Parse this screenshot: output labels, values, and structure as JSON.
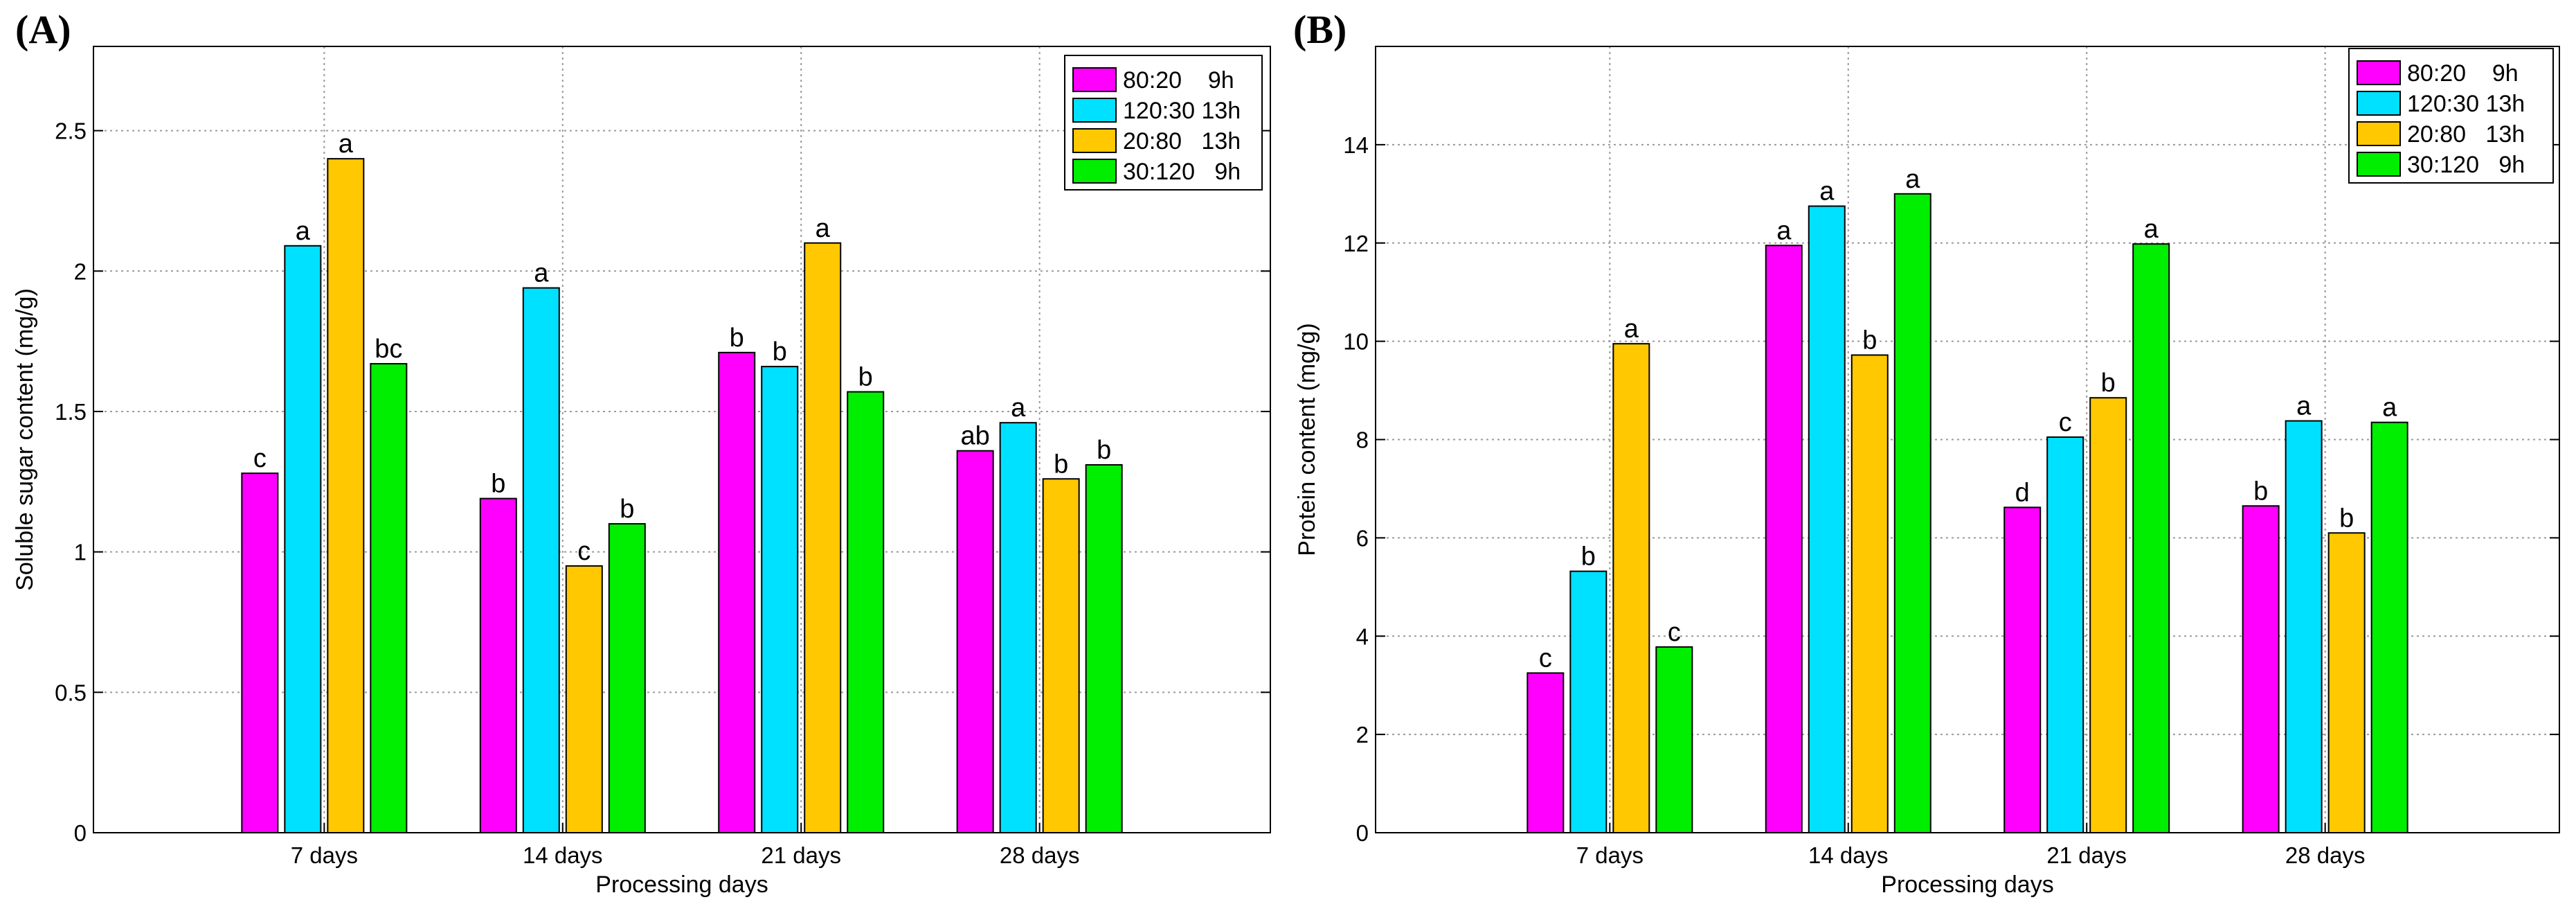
{
  "chart_data": [
    {
      "type": "bar",
      "panel_label": "(A)",
      "title": "",
      "xlabel": "Processing days",
      "ylabel": "Soluble sugar content (mg/g)",
      "ylim": [
        0,
        2.8
      ],
      "yticks": [
        "0",
        "0.5",
        "1",
        "1.5",
        "2",
        "2.5"
      ],
      "ytick_values": [
        0,
        0.5,
        1,
        1.5,
        2,
        2.5
      ],
      "grid": true,
      "legend_position": "top-right",
      "categories": [
        "7 days",
        "14 days",
        "21 days",
        "28 days"
      ],
      "series": [
        {
          "name": "80:20    9h",
          "color": "#ff00ff",
          "values": [
            1.28,
            1.19,
            1.71,
            1.36
          ],
          "labels": [
            "c",
            "b",
            "b",
            "ab"
          ]
        },
        {
          "name": "120:30 13h",
          "color": "#00e0ff",
          "values": [
            2.09,
            1.94,
            1.66,
            1.46
          ],
          "labels": [
            "a",
            "a",
            "b",
            "a"
          ]
        },
        {
          "name": "20:80   13h",
          "color": "#ffc800",
          "values": [
            2.4,
            0.95,
            2.1,
            1.26
          ],
          "labels": [
            "a",
            "c",
            "a",
            "b"
          ]
        },
        {
          "name": "30:120   9h",
          "color": "#00ee00",
          "values": [
            1.67,
            1.1,
            1.57,
            1.31
          ],
          "labels": [
            "bc",
            "b",
            "b",
            "b"
          ]
        }
      ]
    },
    {
      "type": "bar",
      "panel_label": "(B)",
      "title": "",
      "xlabel": "Processing days",
      "ylabel": "Protein content (mg/g)",
      "ylim": [
        0,
        16
      ],
      "yticks": [
        "0",
        "2",
        "4",
        "6",
        "8",
        "10",
        "12",
        "14"
      ],
      "ytick_values": [
        0,
        2,
        4,
        6,
        8,
        10,
        12,
        14
      ],
      "grid": true,
      "legend_position": "top-right",
      "categories": [
        "7 days",
        "14 days",
        "21 days",
        "28 days"
      ],
      "series": [
        {
          "name": "80:20    9h",
          "color": "#ff00ff",
          "values": [
            3.25,
            11.95,
            6.62,
            6.65
          ],
          "labels": [
            "c",
            "a",
            "d",
            "b"
          ]
        },
        {
          "name": "120:30 13h",
          "color": "#00e0ff",
          "values": [
            5.32,
            12.75,
            8.05,
            8.38
          ],
          "labels": [
            "b",
            "a",
            "c",
            "a"
          ]
        },
        {
          "name": "20:80   13h",
          "color": "#ffc800",
          "values": [
            9.95,
            9.72,
            8.85,
            6.1
          ],
          "labels": [
            "a",
            "b",
            "b",
            "b"
          ]
        },
        {
          "name": "30:120   9h",
          "color": "#00ee00",
          "values": [
            3.78,
            13.0,
            11.98,
            8.35
          ],
          "labels": [
            "c",
            "a",
            "a",
            "a"
          ]
        }
      ]
    }
  ]
}
